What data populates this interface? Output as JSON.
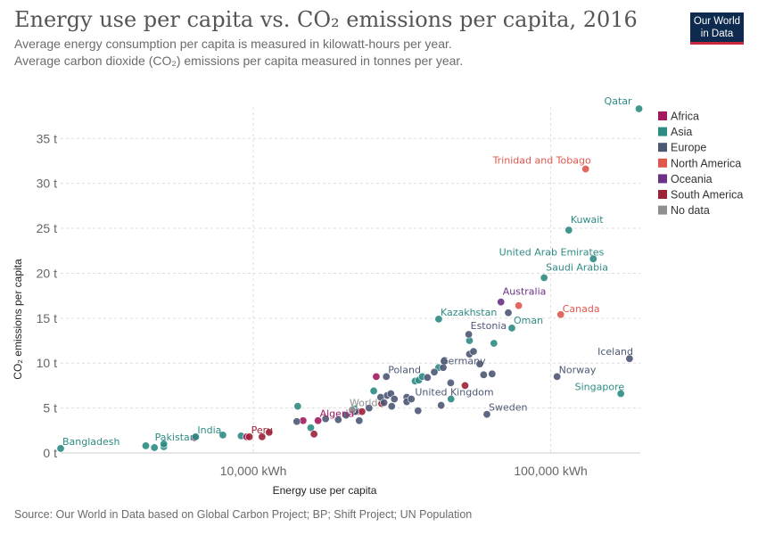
{
  "header": {
    "title": "Energy use per capita vs. CO₂ emissions per capita, 2016",
    "subtitle_1": "Average energy consumption per capita is measured in kilowatt-hours per year.",
    "subtitle_2": "Average carbon dioxide (CO₂) emissions per capita measured in tonnes per year."
  },
  "logo": {
    "line1": "Our World",
    "line2": "in Data"
  },
  "source": "Source: Our World in Data based on Global Carbon Project; BP; Shift Project; UN Population",
  "chart_data": {
    "type": "scatter",
    "title": "Energy use per capita vs. CO₂ emissions per capita, 2016",
    "xlabel": "Energy use per capita",
    "ylabel": "CO₂ emissions per capita",
    "xscale": "log",
    "xlim": [
      2250,
      200000
    ],
    "ylim": [
      0,
      38.5
    ],
    "x_ticks": [
      {
        "value": 10000,
        "label": "10,000 kWh"
      },
      {
        "value": 100000,
        "label": "100,000 kWh"
      }
    ],
    "y_ticks": [
      {
        "value": 0,
        "label": "0 t"
      },
      {
        "value": 5,
        "label": "5 t"
      },
      {
        "value": 10,
        "label": "10 t"
      },
      {
        "value": 15,
        "label": "15 t"
      },
      {
        "value": 20,
        "label": "20 t"
      },
      {
        "value": 25,
        "label": "25 t"
      },
      {
        "value": 30,
        "label": "30 t"
      },
      {
        "value": 35,
        "label": "35 t"
      }
    ],
    "grid": true,
    "legend_position": "right",
    "legend": [
      {
        "name": "Africa",
        "color": "#a2195f"
      },
      {
        "name": "Asia",
        "color": "#2e8b84"
      },
      {
        "name": "Europe",
        "color": "#4d5874"
      },
      {
        "name": "North America",
        "color": "#e0574d"
      },
      {
        "name": "Oceania",
        "color": "#6b3285"
      },
      {
        "name": "South America",
        "color": "#9b2238"
      },
      {
        "name": "No data",
        "color": "#8f8f8f"
      }
    ],
    "labeled_points": [
      {
        "name": "Qatar",
        "region": "Asia",
        "x": 198000,
        "y": 38.3
      },
      {
        "name": "Trinidad and Tobago",
        "region": "North America",
        "x": 131000,
        "y": 31.6
      },
      {
        "name": "Kuwait",
        "region": "Asia",
        "x": 115000,
        "y": 24.8
      },
      {
        "name": "United Arab Emirates",
        "region": "Asia",
        "x": 139000,
        "y": 21.6
      },
      {
        "name": "Saudi Arabia",
        "region": "Asia",
        "x": 95000,
        "y": 19.5
      },
      {
        "name": "Australia",
        "region": "Oceania",
        "x": 68000,
        "y": 16.8
      },
      {
        "name": "Canada",
        "region": "North America",
        "x": 108000,
        "y": 15.4
      },
      {
        "name": "Kazakhstan",
        "region": "Asia",
        "x": 42000,
        "y": 14.9
      },
      {
        "name": "Oman",
        "region": "Asia",
        "x": 74000,
        "y": 13.9
      },
      {
        "name": "Estonia",
        "region": "Europe",
        "x": 53000,
        "y": 13.2
      },
      {
        "name": "Iceland",
        "region": "Europe",
        "x": 184000,
        "y": 10.5
      },
      {
        "name": "Germany",
        "region": "Europe",
        "x": 43500,
        "y": 9.5
      },
      {
        "name": "Poland",
        "region": "Europe",
        "x": 28000,
        "y": 8.5
      },
      {
        "name": "Norway",
        "region": "Europe",
        "x": 105000,
        "y": 8.5
      },
      {
        "name": "United Kingdom",
        "region": "Europe",
        "x": 34000,
        "y": 6.0
      },
      {
        "name": "Singapore",
        "region": "Asia",
        "x": 172000,
        "y": 6.6
      },
      {
        "name": "World",
        "region": "No data",
        "x": 21500,
        "y": 4.8
      },
      {
        "name": "Sweden",
        "region": "Europe",
        "x": 61000,
        "y": 4.3
      },
      {
        "name": "Algeria",
        "region": "Africa",
        "x": 16500,
        "y": 3.6
      },
      {
        "name": "India",
        "region": "Asia",
        "x": 6400,
        "y": 1.8
      },
      {
        "name": "Peru",
        "region": "South America",
        "x": 9700,
        "y": 1.8
      },
      {
        "name": "Pakistan",
        "region": "Asia",
        "x": 5000,
        "y": 1.0
      },
      {
        "name": "Bangladesh",
        "region": "Asia",
        "x": 2250,
        "y": 0.5
      }
    ],
    "other_points": [
      {
        "region": "Asia",
        "x": 4350,
        "y": 0.8
      },
      {
        "region": "Asia",
        "x": 4650,
        "y": 0.6
      },
      {
        "region": "Asia",
        "x": 5000,
        "y": 0.7
      },
      {
        "region": "Asia",
        "x": 7900,
        "y": 2.0
      },
      {
        "region": "Asia",
        "x": 9100,
        "y": 1.9
      },
      {
        "region": "Asia",
        "x": 14100,
        "y": 5.2
      },
      {
        "region": "Asia",
        "x": 15600,
        "y": 2.8
      },
      {
        "region": "Asia",
        "x": 21900,
        "y": 4.9
      },
      {
        "region": "Asia",
        "x": 25400,
        "y": 6.9
      },
      {
        "region": "Asia",
        "x": 35000,
        "y": 8.0
      },
      {
        "region": "Asia",
        "x": 36000,
        "y": 8.1
      },
      {
        "region": "Asia",
        "x": 37000,
        "y": 8.5
      },
      {
        "region": "Asia",
        "x": 42000,
        "y": 9.5
      },
      {
        "region": "Asia",
        "x": 53300,
        "y": 12.5
      },
      {
        "region": "Asia",
        "x": 64400,
        "y": 12.2
      },
      {
        "region": "Asia",
        "x": 46200,
        "y": 6.0
      },
      {
        "region": "Africa",
        "x": 6350,
        "y": 1.7
      },
      {
        "region": "Africa",
        "x": 9500,
        "y": 1.8
      },
      {
        "region": "Africa",
        "x": 14700,
        "y": 3.6
      },
      {
        "region": "Africa",
        "x": 22400,
        "y": 4.6
      },
      {
        "region": "Africa",
        "x": 25900,
        "y": 8.5
      },
      {
        "region": "South America",
        "x": 10700,
        "y": 1.8
      },
      {
        "region": "South America",
        "x": 11300,
        "y": 2.3
      },
      {
        "region": "South America",
        "x": 16000,
        "y": 2.1
      },
      {
        "region": "South America",
        "x": 23200,
        "y": 4.6
      },
      {
        "region": "South America",
        "x": 27000,
        "y": 5.5
      },
      {
        "region": "South America",
        "x": 51500,
        "y": 7.5
      },
      {
        "region": "Europe",
        "x": 14000,
        "y": 3.5
      },
      {
        "region": "Europe",
        "x": 17500,
        "y": 3.8
      },
      {
        "region": "Europe",
        "x": 19300,
        "y": 3.7
      },
      {
        "region": "Europe",
        "x": 20500,
        "y": 4.2
      },
      {
        "region": "Europe",
        "x": 22000,
        "y": 4.6
      },
      {
        "region": "Europe",
        "x": 22700,
        "y": 3.6
      },
      {
        "region": "Europe",
        "x": 24500,
        "y": 5.0
      },
      {
        "region": "Europe",
        "x": 26800,
        "y": 6.2
      },
      {
        "region": "Europe",
        "x": 27500,
        "y": 5.6
      },
      {
        "region": "Europe",
        "x": 28200,
        "y": 6.4
      },
      {
        "region": "Europe",
        "x": 29000,
        "y": 6.6
      },
      {
        "region": "Europe",
        "x": 29200,
        "y": 5.2
      },
      {
        "region": "Europe",
        "x": 29800,
        "y": 6.0
      },
      {
        "region": "Europe",
        "x": 32800,
        "y": 6.2
      },
      {
        "region": "Europe",
        "x": 32800,
        "y": 5.7
      },
      {
        "region": "Europe",
        "x": 35800,
        "y": 4.7
      },
      {
        "region": "Europe",
        "x": 38500,
        "y": 8.4
      },
      {
        "region": "Europe",
        "x": 40600,
        "y": 9.0
      },
      {
        "region": "Europe",
        "x": 42800,
        "y": 5.3
      },
      {
        "region": "Europe",
        "x": 43800,
        "y": 10.2
      },
      {
        "region": "Europe",
        "x": 46100,
        "y": 7.8
      },
      {
        "region": "Europe",
        "x": 53300,
        "y": 11.0
      },
      {
        "region": "Europe",
        "x": 55000,
        "y": 11.3
      },
      {
        "region": "Europe",
        "x": 57700,
        "y": 9.9
      },
      {
        "region": "Europe",
        "x": 59500,
        "y": 8.7
      },
      {
        "region": "Europe",
        "x": 63500,
        "y": 8.8
      },
      {
        "region": "Europe",
        "x": 72000,
        "y": 15.6
      },
      {
        "region": "North America",
        "x": 78000,
        "y": 16.4
      }
    ]
  }
}
